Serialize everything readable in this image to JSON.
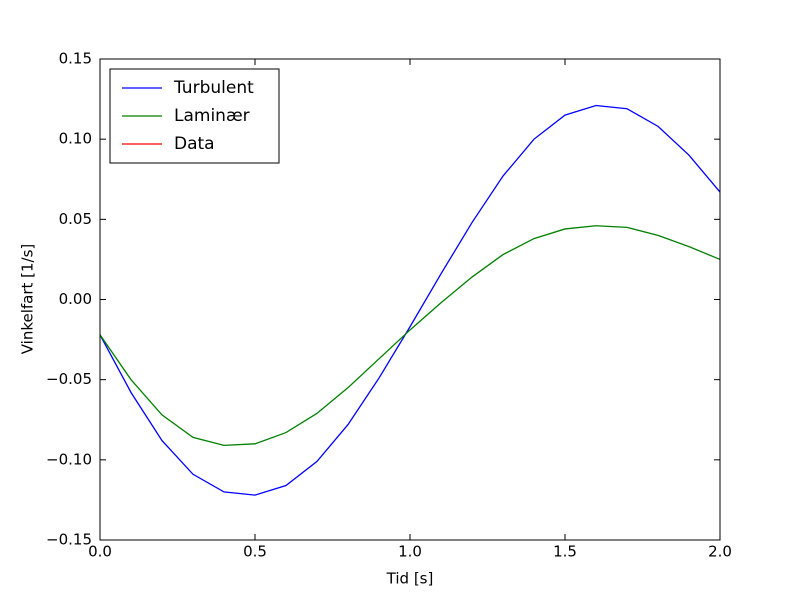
{
  "chart_data": {
    "type": "line",
    "xlabel": "Tid [s]",
    "ylabel": "Vinkelfart [1/s]",
    "x": [
      0,
      0.1,
      0.2,
      0.3,
      0.4,
      0.5,
      0.6,
      0.7,
      0.8,
      0.9,
      1.0,
      1.1,
      1.2,
      1.3,
      1.4,
      1.5,
      1.6,
      1.7,
      1.8,
      1.9,
      2.0
    ],
    "series": [
      {
        "name": "Turbulent",
        "color": "#0000ff",
        "values": [
          -0.022,
          -0.058,
          -0.088,
          -0.109,
          -0.12,
          -0.122,
          -0.116,
          -0.101,
          -0.078,
          -0.049,
          -0.017,
          0.016,
          0.048,
          0.077,
          0.1,
          0.115,
          0.121,
          0.119,
          0.108,
          0.09,
          0.067
        ]
      },
      {
        "name": "Laminær",
        "color": "#008000",
        "values": [
          -0.022,
          -0.05,
          -0.072,
          -0.086,
          -0.091,
          -0.09,
          -0.083,
          -0.071,
          -0.055,
          -0.037,
          -0.019,
          -0.002,
          0.014,
          0.028,
          0.038,
          0.044,
          0.046,
          0.045,
          0.04,
          0.033,
          0.025
        ]
      },
      {
        "name": "Data",
        "color": "#ff0000",
        "values": [
          null,
          null,
          null,
          null,
          null,
          null,
          null,
          null,
          null,
          null,
          null,
          null,
          null,
          null,
          null,
          null,
          null,
          null,
          null,
          null,
          null
        ]
      }
    ],
    "xlim": [
      0,
      2
    ],
    "xticks": [
      {
        "value": 0,
        "label": "0.0"
      },
      {
        "value": 0.5,
        "label": "0.5"
      },
      {
        "value": 1,
        "label": "1.0"
      },
      {
        "value": 1.5,
        "label": "1.5"
      },
      {
        "value": 2,
        "label": "2.0"
      }
    ],
    "ylim": [
      -0.15,
      0.15
    ],
    "yticks": [
      {
        "value": -0.15,
        "label": "−0.15"
      },
      {
        "value": -0.1,
        "label": "−0.10"
      },
      {
        "value": -0.05,
        "label": "−0.05"
      },
      {
        "value": 0,
        "label": "0.00"
      },
      {
        "value": 0.05,
        "label": "0.05"
      },
      {
        "value": 0.1,
        "label": "0.10"
      },
      {
        "value": 0.15,
        "label": "0.15"
      }
    ],
    "legend": "upper left"
  }
}
